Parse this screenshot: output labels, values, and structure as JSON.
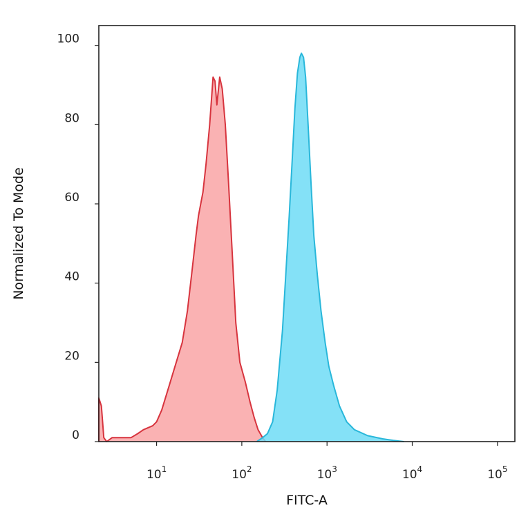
{
  "chart_data": {
    "type": "area",
    "title": "",
    "xlabel": "FITC-A",
    "ylabel": "Normalized To Mode",
    "x_scale": "log",
    "xlim": [
      2.1,
      160000
    ],
    "ylim": [
      0,
      105
    ],
    "x_ticks": [
      {
        "base": "10",
        "exp": "1",
        "value": 10
      },
      {
        "base": "10",
        "exp": "2",
        "value": 100
      },
      {
        "base": "10",
        "exp": "3",
        "value": 1000
      },
      {
        "base": "10",
        "exp": "4",
        "value": 10000
      },
      {
        "base": "10",
        "exp": "5",
        "value": 100000
      }
    ],
    "y_ticks": [
      0,
      20,
      40,
      60,
      80,
      100
    ],
    "grid": false,
    "legend": "none",
    "series": [
      {
        "fill": "#f9a4a6",
        "stroke": "#d7343e",
        "points": [
          [
            2.1,
            0
          ],
          [
            2.1,
            11
          ],
          [
            2.25,
            9
          ],
          [
            2.4,
            1
          ],
          [
            2.6,
            0
          ],
          [
            3.0,
            1
          ],
          [
            4.0,
            1
          ],
          [
            5.0,
            1
          ],
          [
            6.0,
            2
          ],
          [
            7.0,
            3
          ],
          [
            9.0,
            4
          ],
          [
            10.0,
            5
          ],
          [
            11.5,
            8
          ],
          [
            14.0,
            14
          ],
          [
            17.0,
            20
          ],
          [
            20.0,
            25
          ],
          [
            23.0,
            33
          ],
          [
            26.0,
            43
          ],
          [
            29.0,
            52
          ],
          [
            31.0,
            57
          ],
          [
            35.0,
            63
          ],
          [
            38.0,
            70
          ],
          [
            42.0,
            80
          ],
          [
            46.0,
            92
          ],
          [
            48.5,
            91
          ],
          [
            51.0,
            85
          ],
          [
            55.0,
            92
          ],
          [
            59.0,
            89
          ],
          [
            64.0,
            80
          ],
          [
            70.0,
            65
          ],
          [
            77.0,
            48
          ],
          [
            85.0,
            30
          ],
          [
            95.0,
            20
          ],
          [
            110.0,
            15
          ],
          [
            125.0,
            10
          ],
          [
            140.0,
            6
          ],
          [
            155.0,
            3
          ],
          [
            175.0,
            1
          ],
          [
            190.0,
            0
          ]
        ]
      },
      {
        "fill": "#6fdcf6",
        "stroke": "#29b7da",
        "points": [
          [
            150.0,
            0
          ],
          [
            175.0,
            1
          ],
          [
            200.0,
            2
          ],
          [
            230.0,
            5
          ],
          [
            260.0,
            13
          ],
          [
            300.0,
            28
          ],
          [
            330.0,
            43
          ],
          [
            360.0,
            57
          ],
          [
            390.0,
            71
          ],
          [
            420.0,
            84
          ],
          [
            450.0,
            93
          ],
          [
            480.0,
            97
          ],
          [
            500.0,
            98
          ],
          [
            530.0,
            97
          ],
          [
            560.0,
            92
          ],
          [
            600.0,
            80
          ],
          [
            650.0,
            65
          ],
          [
            700.0,
            52
          ],
          [
            770.0,
            42
          ],
          [
            850.0,
            33
          ],
          [
            950.0,
            25
          ],
          [
            1050.0,
            19
          ],
          [
            1200.0,
            14
          ],
          [
            1400.0,
            9
          ],
          [
            1700.0,
            5
          ],
          [
            2100.0,
            3
          ],
          [
            3000.0,
            1.5
          ],
          [
            4500.0,
            0.7
          ],
          [
            6000.0,
            0.3
          ],
          [
            8000.0,
            0
          ]
        ]
      }
    ]
  }
}
